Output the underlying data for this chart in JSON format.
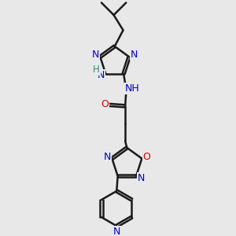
{
  "bg_color": "#e8e8e8",
  "bond_color": "#1a1a1a",
  "N_color": "#0000cc",
  "O_color": "#cc0000",
  "H_color": "#2e8b8b",
  "line_width": 1.8,
  "dbo": 0.055,
  "font_size": 9.0,
  "fig_w": 3.0,
  "fig_h": 3.0,
  "dpi": 100,
  "xlim": [
    3.5,
    7.5
  ],
  "ylim": [
    0.3,
    10.5
  ]
}
